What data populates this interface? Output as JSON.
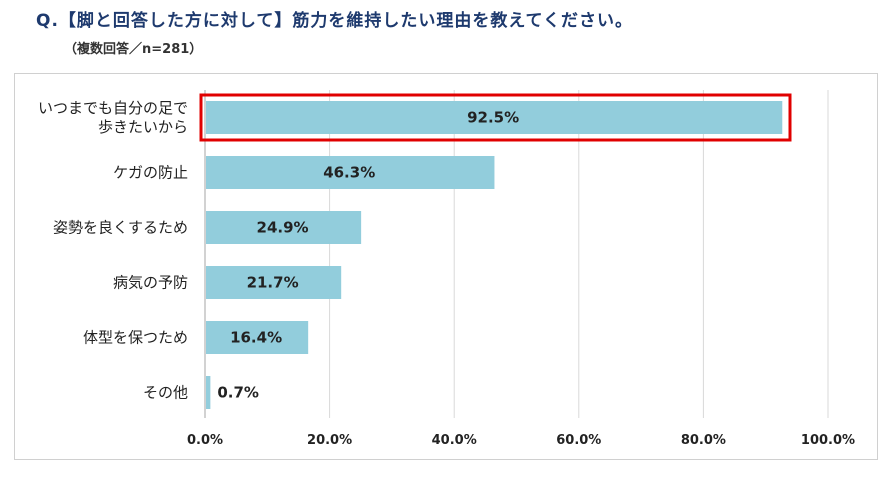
{
  "header": {
    "title": "Q.【脚と回答した方に対して】筋力を維持したい理由を教えてください。",
    "subtitle": "（複数回答／n=281）"
  },
  "colors": {
    "bar": "#92cddc",
    "highlight": "#e00000",
    "grid": "#d9d9d9",
    "axis": "#a6a6a6",
    "title": "#1e3a6e"
  },
  "chart_data": {
    "type": "bar",
    "orientation": "horizontal",
    "categories": [
      [
        "いつまでも自分の足で",
        "歩きたいから"
      ],
      [
        "ケガの防止"
      ],
      [
        "姿勢を良くするため"
      ],
      [
        "病気の予防"
      ],
      [
        "体型を保つため"
      ],
      [
        "その他"
      ]
    ],
    "values": [
      92.5,
      46.3,
      24.9,
      21.7,
      16.4,
      0.7
    ],
    "value_labels": [
      "92.5%",
      "46.3%",
      "24.9%",
      "21.7%",
      "16.4%",
      "0.7%"
    ],
    "xlim": [
      0,
      100
    ],
    "ticks": [
      0,
      20,
      40,
      60,
      80,
      100
    ],
    "tick_labels": [
      "0.0%",
      "20.0%",
      "40.0%",
      "60.0%",
      "80.0%",
      "100.0%"
    ],
    "grid": true,
    "highlighted_category_index": 0
  }
}
